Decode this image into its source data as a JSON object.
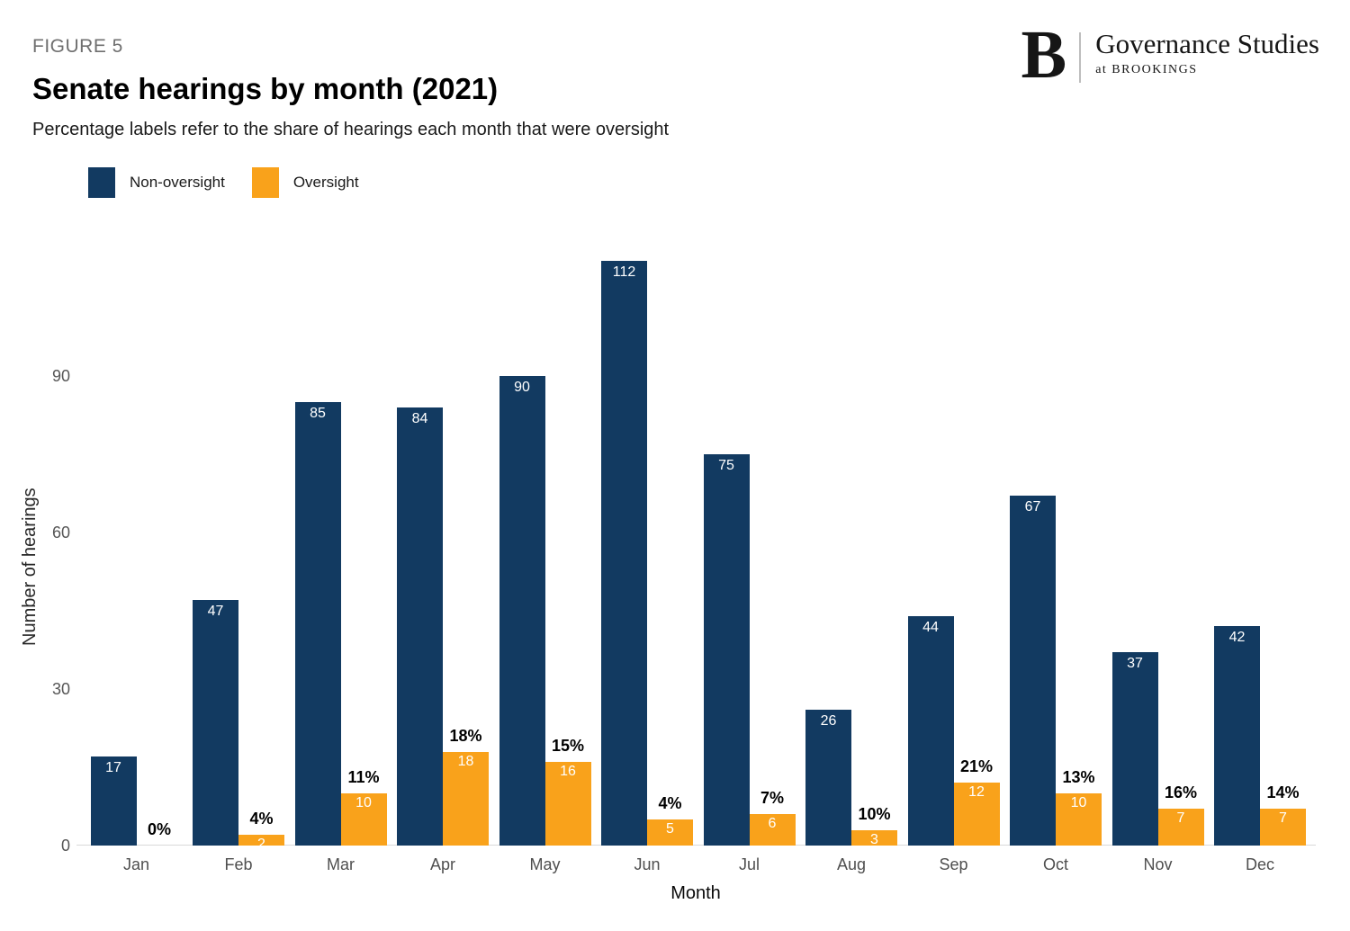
{
  "figure_label": "FIGURE 5",
  "title": "Senate hearings by month (2021)",
  "subtitle": "Percentage labels refer to the share of hearings each month that were oversight",
  "logo": {
    "b_mark": "B",
    "name": "Governance Studies",
    "sub": "at BROOKINGS"
  },
  "colors": {
    "non_oversight": "#123A61",
    "oversight": "#F9A21B",
    "pct_label": "#000000",
    "bar_value_text": "#ffffff"
  },
  "legend": {
    "items": [
      {
        "label": "Non-oversight",
        "color": "#123A61"
      },
      {
        "label": "Oversight",
        "color": "#F9A21B"
      }
    ]
  },
  "chart_data": {
    "type": "bar",
    "title": "Senate hearings by month (2021)",
    "categories": [
      "Jan",
      "Feb",
      "Mar",
      "Apr",
      "May",
      "Jun",
      "Jul",
      "Aug",
      "Sep",
      "Oct",
      "Nov",
      "Dec"
    ],
    "series": [
      {
        "name": "Non-oversight",
        "values": [
          17,
          47,
          85,
          84,
          90,
          112,
          75,
          26,
          44,
          67,
          37,
          42
        ]
      },
      {
        "name": "Oversight",
        "values": [
          0,
          2,
          10,
          18,
          16,
          5,
          6,
          3,
          12,
          10,
          7,
          7
        ]
      }
    ],
    "pct_labels": [
      "0%",
      "4%",
      "11%",
      "18%",
      "15%",
      "4%",
      "7%",
      "10%",
      "21%",
      "13%",
      "16%",
      "14%"
    ],
    "xlabel": "Month",
    "ylabel": "Number of hearings",
    "yticks": [
      0,
      30,
      60,
      90
    ],
    "ylim": [
      0,
      116
    ],
    "grid": false,
    "legend_position": "top-left"
  }
}
